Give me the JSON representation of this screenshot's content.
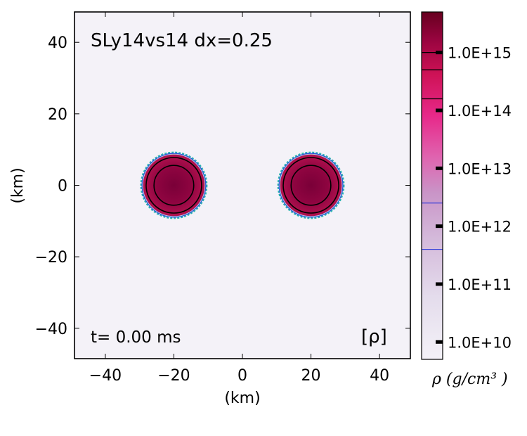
{
  "chart_data": {
    "type": "heatmap",
    "title": "SLy14vs14 dx=0.25",
    "time_label": "t= 0.00 ms",
    "quantity_label": "[ρ]",
    "xlabel": "(km)",
    "ylabel": "(km)",
    "xlim": [
      -49,
      49
    ],
    "ylim": [
      -48.5,
      48.5
    ],
    "xticks": [
      -40,
      -20,
      0,
      20,
      40
    ],
    "yticks": [
      -40,
      -20,
      0,
      20,
      40
    ],
    "xtick_labels": [
      "−40",
      "−20",
      "0",
      "20",
      "40"
    ],
    "ytick_labels": [
      "−40",
      "−20",
      "0",
      "20",
      "40"
    ],
    "background_color": "#f4f2f8",
    "stars": [
      {
        "center": [
          -20,
          0
        ],
        "radius_km": 9.0
      },
      {
        "center": [
          20,
          0
        ],
        "radius_km": 9.0
      }
    ],
    "contour_radii_km": [
      8.1,
      5.8
    ],
    "colorbar": {
      "label": "ρ (g/cm³ )",
      "scale": "log",
      "range_log10": [
        9.7,
        15.7
      ],
      "ticks": [
        {
          "value_log10": 15,
          "label": "1.0E+15"
        },
        {
          "value_log10": 14,
          "label": "1.0E+14"
        },
        {
          "value_log10": 13,
          "label": "1.0E+13"
        },
        {
          "value_log10": 12,
          "label": "1.0E+12"
        },
        {
          "value_log10": 11,
          "label": "1.0E+11"
        },
        {
          "value_log10": 10,
          "label": "1.0E+10"
        }
      ],
      "contour_levels_log10": [
        15.0,
        14.7,
        14.2
      ],
      "blue_levels_log10": [
        12.4,
        11.6
      ],
      "colors": [
        "#f4f2f8",
        "#e3dcec",
        "#c994c7",
        "#df65b0",
        "#e7298a",
        "#ce1256",
        "#98043f",
        "#67001f"
      ]
    }
  }
}
